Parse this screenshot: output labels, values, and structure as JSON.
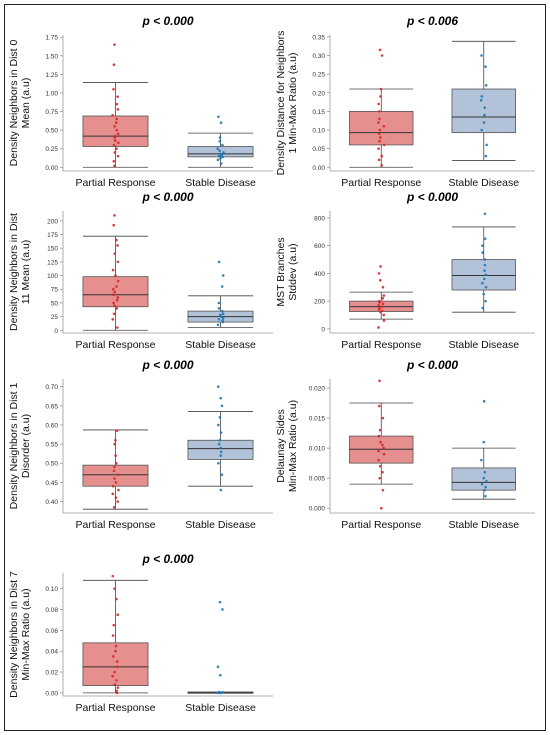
{
  "chart_data": [
    {
      "type": "box",
      "title": "p < 0.000",
      "ylabel_lines": [
        "Density Neighbors in Dist 0",
        "Mean (a.u)"
      ],
      "categories": [
        "Partial Response",
        "Stable Disease"
      ],
      "yticks": [
        "0.00",
        "0.25",
        "0.50",
        "0.75",
        "1.00",
        "1.25",
        "1.50",
        "1.75"
      ],
      "ylim": [
        -0.05,
        1.78
      ],
      "boxes": [
        {
          "name": "Partial Response",
          "color": "#e58f8f",
          "point_color": "#d62728",
          "whisker_low": 0.0,
          "q1": 0.28,
          "median": 0.42,
          "q3": 0.69,
          "whisker_high": 1.14,
          "points": [
            0.02,
            0.08,
            0.15,
            0.2,
            0.25,
            0.3,
            0.33,
            0.36,
            0.4,
            0.42,
            0.45,
            0.5,
            0.55,
            0.6,
            0.65,
            0.7,
            0.78,
            0.85,
            0.95,
            1.05,
            1.38,
            1.65
          ]
        },
        {
          "name": "Stable Disease",
          "color": "#b2c3d9",
          "point_color": "#1f77b4",
          "whisker_low": 0.0,
          "q1": 0.14,
          "median": 0.18,
          "q3": 0.28,
          "whisker_high": 0.46,
          "points": [
            0.05,
            0.1,
            0.12,
            0.14,
            0.15,
            0.16,
            0.17,
            0.18,
            0.2,
            0.22,
            0.25,
            0.3,
            0.35,
            0.4,
            0.6,
            0.68
          ]
        }
      ]
    },
    {
      "type": "box",
      "title": "p < 0.006",
      "ylabel_lines": [
        "Density Distance for Neighbors",
        "1 Min-Max Ratio (a.u)"
      ],
      "categories": [
        "Partial Response",
        "Stable Disease"
      ],
      "yticks": [
        "0.00",
        "0.05",
        "0.10",
        "0.15",
        "0.20",
        "0.25",
        "0.30",
        "0.35"
      ],
      "ylim": [
        -0.01,
        0.355
      ],
      "boxes": [
        {
          "name": "Partial Response",
          "color": "#e58f8f",
          "point_color": "#d62728",
          "whisker_low": 0.0,
          "q1": 0.06,
          "median": 0.093,
          "q3": 0.15,
          "whisker_high": 0.21,
          "points": [
            0.005,
            0.02,
            0.03,
            0.05,
            0.06,
            0.07,
            0.08,
            0.09,
            0.1,
            0.11,
            0.12,
            0.13,
            0.15,
            0.17,
            0.19,
            0.21,
            0.3,
            0.315
          ]
        },
        {
          "name": "Stable Disease",
          "color": "#b2c3d9",
          "point_color": "#1f77b4",
          "whisker_low": 0.018,
          "q1": 0.093,
          "median": 0.135,
          "q3": 0.21,
          "whisker_high": 0.338,
          "points": [
            0.03,
            0.06,
            0.1,
            0.12,
            0.14,
            0.16,
            0.18,
            0.19,
            0.22,
            0.27,
            0.3
          ]
        }
      ]
    },
    {
      "type": "box",
      "title": "p < 0.000",
      "ylabel_lines": [
        "Density Neighbors in Dist",
        "11 Mean (a.u)"
      ],
      "categories": [
        "Partial Response",
        "Stable Disease"
      ],
      "yticks": [
        "0",
        "25",
        "50",
        "75",
        "100",
        "125",
        "150",
        "175",
        "200"
      ],
      "ylim": [
        -5,
        218
      ],
      "boxes": [
        {
          "name": "Partial Response",
          "color": "#e58f8f",
          "point_color": "#d62728",
          "whisker_low": 0,
          "q1": 43,
          "median": 65,
          "q3": 98,
          "whisker_high": 172,
          "points": [
            5,
            20,
            30,
            40,
            45,
            50,
            55,
            60,
            65,
            70,
            75,
            80,
            90,
            100,
            110,
            125,
            140,
            155,
            165,
            192,
            210
          ]
        },
        {
          "name": "Stable Disease",
          "color": "#b2c3d9",
          "point_color": "#1f77b4",
          "whisker_low": 5,
          "q1": 15,
          "median": 25,
          "q3": 35,
          "whisker_high": 63,
          "points": [
            10,
            15,
            18,
            20,
            22,
            25,
            28,
            30,
            35,
            40,
            50,
            80,
            100,
            125
          ]
        }
      ]
    },
    {
      "type": "box",
      "title": "p < 0.000",
      "ylabel_lines": [
        "MST Branches",
        "Stddev (a.u)"
      ],
      "categories": [
        "Partial Response",
        "Stable Disease"
      ],
      "yticks": [
        "0",
        "200",
        "400",
        "600",
        "800"
      ],
      "ylim": [
        -30,
        850
      ],
      "boxes": [
        {
          "name": "Partial Response",
          "color": "#e58f8f",
          "point_color": "#d62728",
          "whisker_low": 70,
          "q1": 125,
          "median": 160,
          "q3": 200,
          "whisker_high": 265,
          "points": [
            10,
            60,
            100,
            120,
            130,
            140,
            150,
            160,
            170,
            180,
            190,
            200,
            220,
            240,
            300,
            350,
            400,
            450
          ]
        },
        {
          "name": "Stable Disease",
          "color": "#b2c3d9",
          "point_color": "#1f77b4",
          "whisker_low": 120,
          "q1": 280,
          "median": 385,
          "q3": 500,
          "whisker_high": 735,
          "points": [
            150,
            200,
            250,
            300,
            330,
            360,
            390,
            420,
            460,
            500,
            550,
            600,
            650,
            830
          ]
        }
      ]
    },
    {
      "type": "box",
      "title": "p < 0.000",
      "ylabel_lines": [
        "Density Neighbors in Dist 1",
        "Disorder (a.u)"
      ],
      "categories": [
        "Partial Response",
        "Stable Disease"
      ],
      "yticks": [
        "0.40",
        "0.45",
        "0.50",
        "0.55",
        "0.60",
        "0.65",
        "0.70"
      ],
      "ylim": [
        0.37,
        0.72
      ],
      "boxes": [
        {
          "name": "Partial Response",
          "color": "#e58f8f",
          "point_color": "#d62728",
          "whisker_low": 0.38,
          "q1": 0.44,
          "median": 0.47,
          "q3": 0.495,
          "whisker_high": 0.587,
          "points": [
            0.385,
            0.4,
            0.41,
            0.42,
            0.43,
            0.44,
            0.45,
            0.46,
            0.47,
            0.48,
            0.49,
            0.5,
            0.52,
            0.55,
            0.56,
            0.585
          ]
        },
        {
          "name": "Stable Disease",
          "color": "#b2c3d9",
          "point_color": "#1f77b4",
          "whisker_low": 0.44,
          "q1": 0.51,
          "median": 0.538,
          "q3": 0.56,
          "whisker_high": 0.635,
          "points": [
            0.43,
            0.47,
            0.5,
            0.52,
            0.53,
            0.54,
            0.55,
            0.56,
            0.58,
            0.6,
            0.62,
            0.65,
            0.67,
            0.7
          ]
        }
      ]
    },
    {
      "type": "box",
      "title": "p < 0.000",
      "ylabel_lines": [
        "Delaunay Sides",
        "Min-Max Ratio (a.u)"
      ],
      "categories": [
        "Partial Response",
        "Stable Disease"
      ],
      "yticks": [
        "0.000",
        "0.005",
        "0.010",
        "0.015",
        "0.020"
      ],
      "ylim": [
        -0.0008,
        0.0215
      ],
      "boxes": [
        {
          "name": "Partial Response",
          "color": "#e58f8f",
          "point_color": "#d62728",
          "whisker_low": 0.004,
          "q1": 0.0075,
          "median": 0.0098,
          "q3": 0.012,
          "whisker_high": 0.0175,
          "points": [
            0.0,
            0.003,
            0.005,
            0.006,
            0.007,
            0.008,
            0.009,
            0.0095,
            0.01,
            0.0105,
            0.011,
            0.012,
            0.013,
            0.015,
            0.017,
            0.0212
          ]
        },
        {
          "name": "Stable Disease",
          "color": "#b2c3d9",
          "point_color": "#1f77b4",
          "whisker_low": 0.0015,
          "q1": 0.003,
          "median": 0.0043,
          "q3": 0.0067,
          "whisker_high": 0.01,
          "points": [
            0.002,
            0.003,
            0.0035,
            0.004,
            0.0045,
            0.005,
            0.006,
            0.008,
            0.011,
            0.0178
          ]
        }
      ]
    },
    {
      "type": "box",
      "title": "p < 0.000",
      "ylabel_lines": [
        "Density Neighbors in Dist 7",
        "Min-Max Ratio (a.u)"
      ],
      "categories": [
        "Partial Response",
        "Stable Disease"
      ],
      "yticks": [
        "0.00",
        "0.02",
        "0.04",
        "0.06",
        "0.08",
        "0.10"
      ],
      "ylim": [
        -0.003,
        0.115
      ],
      "boxes": [
        {
          "name": "Partial Response",
          "color": "#e58f8f",
          "point_color": "#d62728",
          "whisker_low": 0.0,
          "q1": 0.007,
          "median": 0.025,
          "q3": 0.048,
          "whisker_high": 0.108,
          "points": [
            0.0,
            0.002,
            0.005,
            0.008,
            0.012,
            0.016,
            0.02,
            0.025,
            0.03,
            0.035,
            0.04,
            0.045,
            0.055,
            0.065,
            0.075,
            0.09,
            0.1,
            0.112
          ]
        },
        {
          "name": "Stable Disease",
          "color": "#b2c3d9",
          "point_color": "#1f77b4",
          "whisker_low": 0.0,
          "q1": 0.0,
          "median": 0.0,
          "q3": 0.0008,
          "whisker_high": 0.0008,
          "points": [
            0.0,
            0.0,
            0.0,
            0.0005,
            0.0008,
            0.017,
            0.025,
            0.08,
            0.087
          ]
        }
      ]
    }
  ]
}
